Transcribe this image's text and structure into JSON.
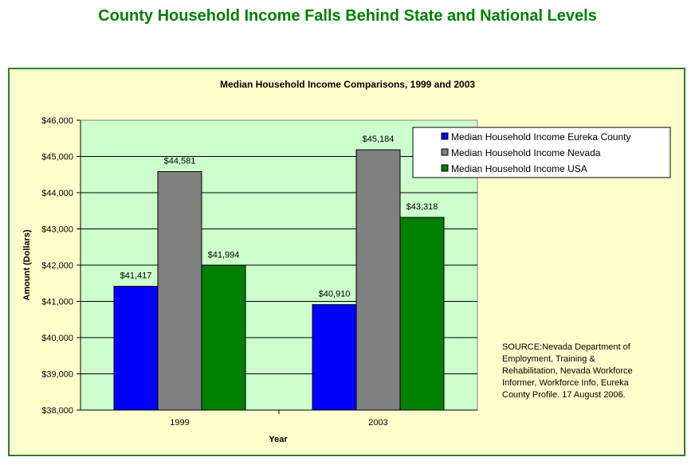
{
  "page": {
    "title": "County Household Income Falls Behind State and National Levels"
  },
  "chart_data": {
    "type": "bar",
    "title": "Median Household Income Comparisons, 1999 and 2003",
    "xlabel": "Year",
    "ylabel": "Amount (Dollars)",
    "categories": [
      "1999",
      "2003"
    ],
    "ylim": [
      38000,
      46000
    ],
    "ytick_step": 1000,
    "ytick_labels": [
      "$38,000",
      "$39,000",
      "$40,000",
      "$41,000",
      "$42,000",
      "$43,000",
      "$44,000",
      "$45,000",
      "$46,000"
    ],
    "grid": true,
    "legend_position": "top-right",
    "series": [
      {
        "name": "Median Household Income Eureka County",
        "color": "#0000ff",
        "values": [
          41417,
          40910
        ],
        "labels": [
          "$41,417",
          "$40,910"
        ]
      },
      {
        "name": "Median Household Income Nevada",
        "color": "#808080",
        "values": [
          44581,
          45184
        ],
        "labels": [
          "$44,581",
          "$45,184"
        ]
      },
      {
        "name": "Median Household Income USA",
        "color": "#008000",
        "values": [
          41994,
          43318
        ],
        "labels": [
          "$41,994",
          "$43,318"
        ]
      }
    ],
    "plot_background": "#ccffcc",
    "source_lines": [
      "SOURCE:Nevada Department of",
      "Employment, Training &",
      "Rehabilitation, Nevada Workforce",
      "Informer, Workforce Info, Eureka",
      "County Profile. 17 August 2006."
    ]
  }
}
